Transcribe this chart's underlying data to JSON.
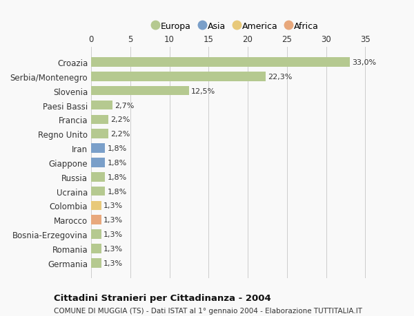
{
  "categories": [
    "Germania",
    "Romania",
    "Bosnia-Erzegovina",
    "Marocco",
    "Colombia",
    "Ucraina",
    "Russia",
    "Giappone",
    "Iran",
    "Regno Unito",
    "Francia",
    "Paesi Bassi",
    "Slovenia",
    "Serbia/Montenegro",
    "Croazia"
  ],
  "values": [
    1.3,
    1.3,
    1.3,
    1.3,
    1.3,
    1.8,
    1.8,
    1.8,
    1.8,
    2.2,
    2.2,
    2.7,
    12.5,
    22.3,
    33.0
  ],
  "labels": [
    "1,3%",
    "1,3%",
    "1,3%",
    "1,3%",
    "1,3%",
    "1,8%",
    "1,8%",
    "1,8%",
    "1,8%",
    "2,2%",
    "2,2%",
    "2,7%",
    "12,5%",
    "22,3%",
    "33,0%"
  ],
  "colors": [
    "#b5c990",
    "#b5c990",
    "#b5c990",
    "#e8a87c",
    "#e8c97a",
    "#b5c990",
    "#b5c990",
    "#7a9fc9",
    "#7a9fc9",
    "#b5c990",
    "#b5c990",
    "#b5c990",
    "#b5c990",
    "#b5c990",
    "#b5c990"
  ],
  "legend": [
    {
      "label": "Europa",
      "color": "#b5c990"
    },
    {
      "label": "Asia",
      "color": "#7a9fc9"
    },
    {
      "label": "America",
      "color": "#e8c97a"
    },
    {
      "label": "Africa",
      "color": "#e8a87c"
    }
  ],
  "title1": "Cittadini Stranieri per Cittadinanza - 2004",
  "title2": "COMUNE DI MUGGIA (TS) - Dati ISTAT al 1° gennaio 2004 - Elaborazione TUTTITALIA.IT",
  "xlim": [
    0,
    37
  ],
  "xticks": [
    0,
    5,
    10,
    15,
    20,
    25,
    30,
    35
  ],
  "bg_color": "#f9f9f9",
  "grid_color": "#cccccc"
}
